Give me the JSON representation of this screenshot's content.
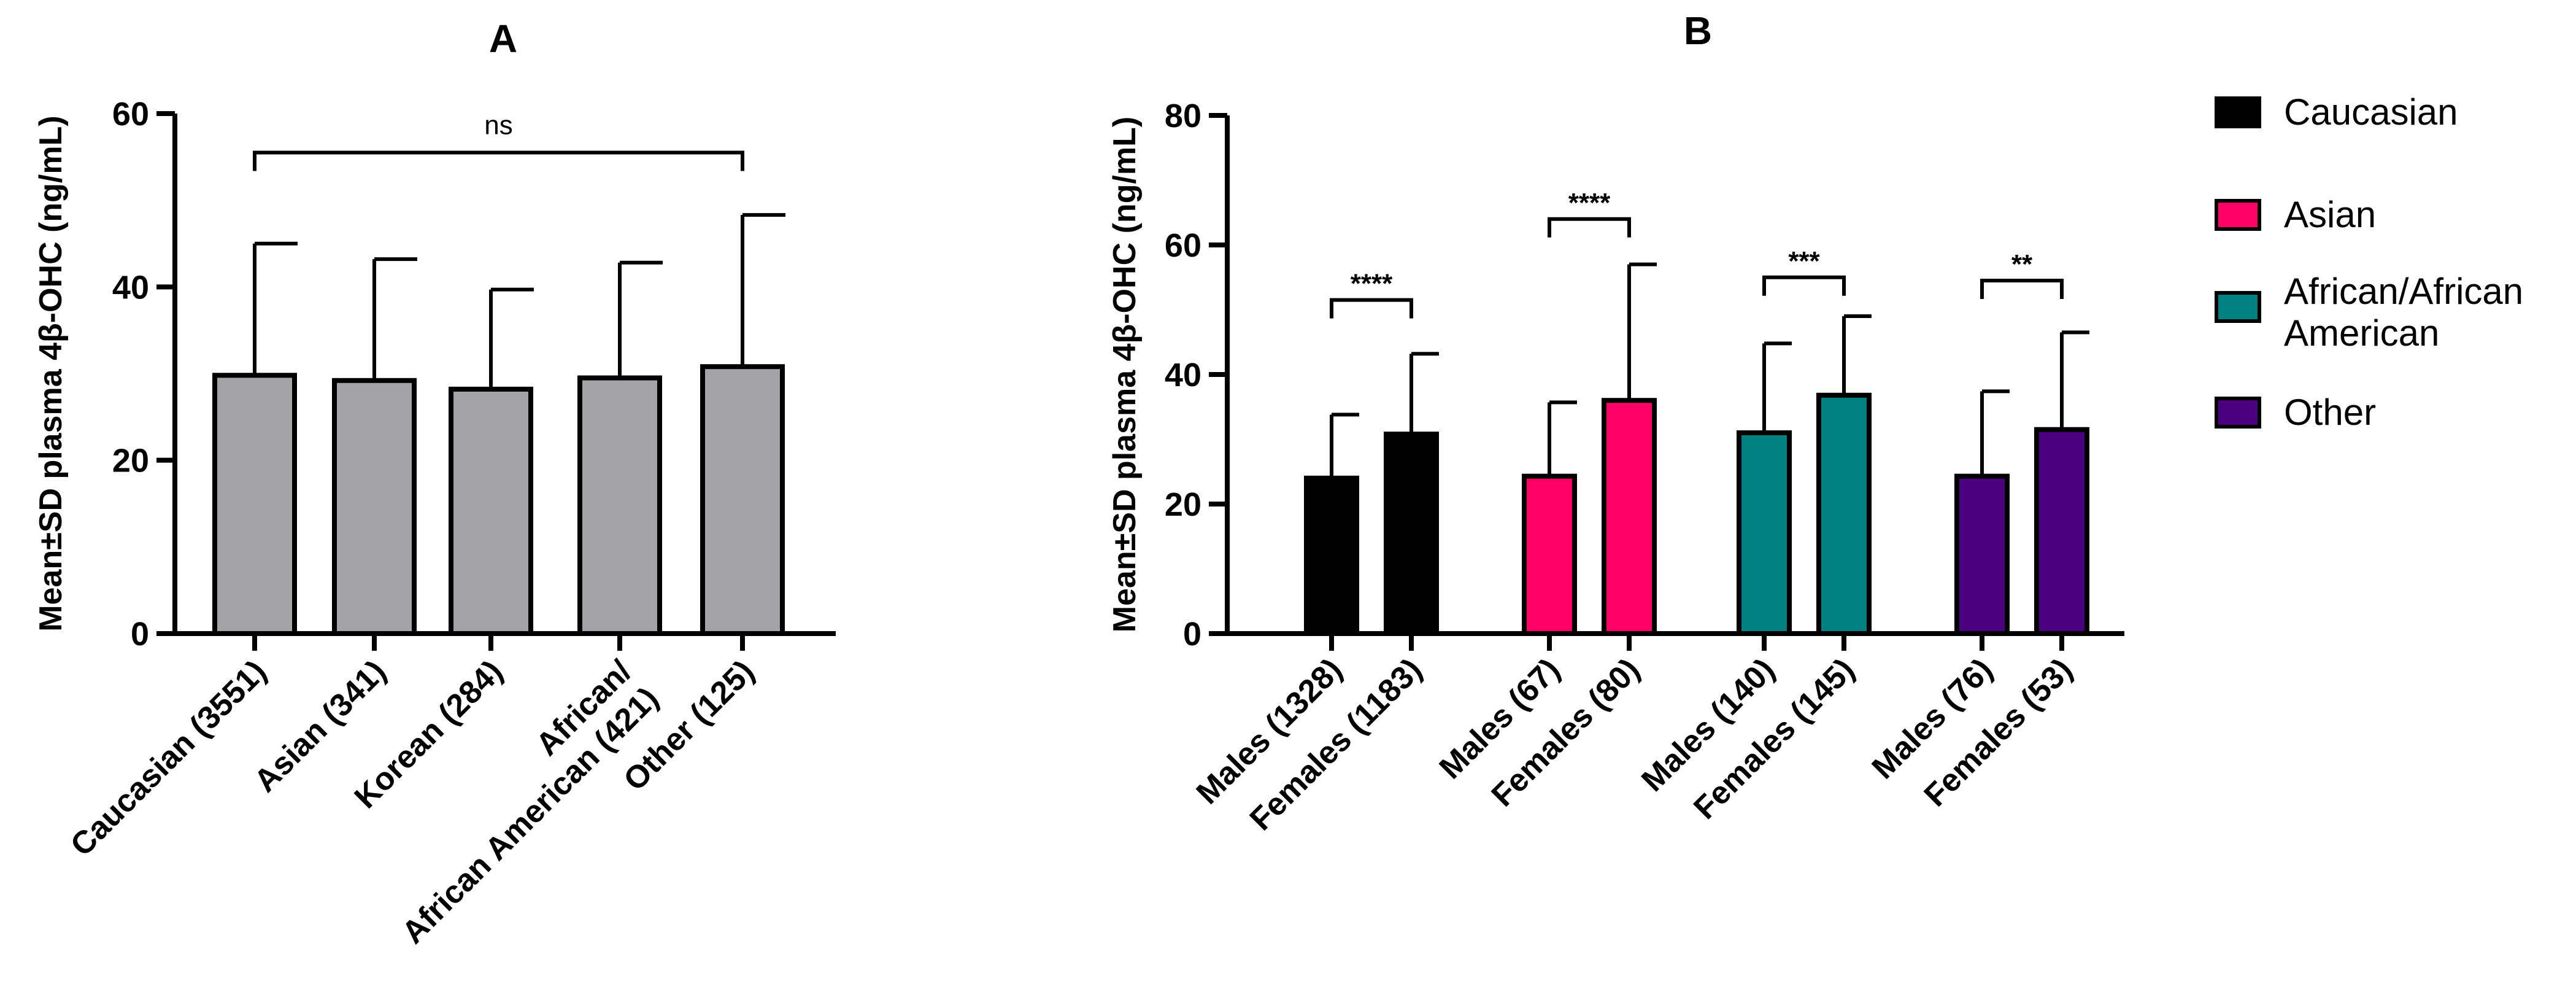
{
  "chart_data": [
    {
      "panel": "A",
      "type": "bar",
      "title": "A",
      "ylabel": "Mean±SD plasma 4β-OHC (ng/mL)",
      "ylim": [
        0,
        60
      ],
      "yticks": [
        0,
        20,
        40,
        60
      ],
      "categories": [
        [
          "Caucasian (3551)"
        ],
        [
          "Asian (341)"
        ],
        [
          "Korean (284)"
        ],
        [
          "African/",
          "African American (421)"
        ],
        [
          "Other (125)"
        ]
      ],
      "values": [
        29.8,
        29.2,
        28.2,
        29.5,
        30.8
      ],
      "sd_upper": [
        45.0,
        43.2,
        39.7,
        42.8,
        48.3
      ],
      "bar_color": "#a3a3a8",
      "significance": [
        {
          "from": 0,
          "to": 4,
          "label": "ns",
          "y": 55.5
        }
      ]
    },
    {
      "panel": "B",
      "type": "bar",
      "title": "B",
      "ylabel": "Mean±SD plasma 4β-OHC (ng/mL)",
      "ylim": [
        0,
        80
      ],
      "yticks": [
        0,
        20,
        40,
        60,
        80
      ],
      "categories": [
        "Males (1328)",
        "Females (1183)",
        "Males (67)",
        "Females (80)",
        "Males (140)",
        "Females (145)",
        "Males (76)",
        "Females (53)"
      ],
      "values": [
        24.0,
        30.8,
        24.3,
        36.0,
        31.0,
        36.8,
        24.3,
        31.5
      ],
      "sd_upper": [
        33.8,
        43.2,
        35.7,
        57.0,
        44.8,
        49.0,
        37.4,
        46.5
      ],
      "groups": [
        "Caucasian",
        "Caucasian",
        "Asian",
        "Asian",
        "African/African American",
        "African/African American",
        "Other",
        "Other"
      ],
      "colors": {
        "Caucasian": "#000000",
        "Asian": "#ff0066",
        "African/African American": "#008080",
        "Other": "#4b0082"
      },
      "significance": [
        {
          "from": 0,
          "to": 1,
          "label": "****",
          "y": 51.5
        },
        {
          "from": 2,
          "to": 3,
          "label": "****",
          "y": 64.0
        },
        {
          "from": 4,
          "to": 5,
          "label": "***",
          "y": 55.0
        },
        {
          "from": 6,
          "to": 7,
          "label": "**",
          "y": 54.5
        }
      ],
      "legend": {
        "position": "right",
        "entries": [
          {
            "label_lines": [
              "Caucasian"
            ],
            "color": "#000000"
          },
          {
            "label_lines": [
              "Asian"
            ],
            "color": "#ff0066"
          },
          {
            "label_lines": [
              "African/African",
              "American"
            ],
            "color": "#008080"
          },
          {
            "label_lines": [
              "Other"
            ],
            "color": "#4b0082"
          }
        ]
      }
    }
  ]
}
